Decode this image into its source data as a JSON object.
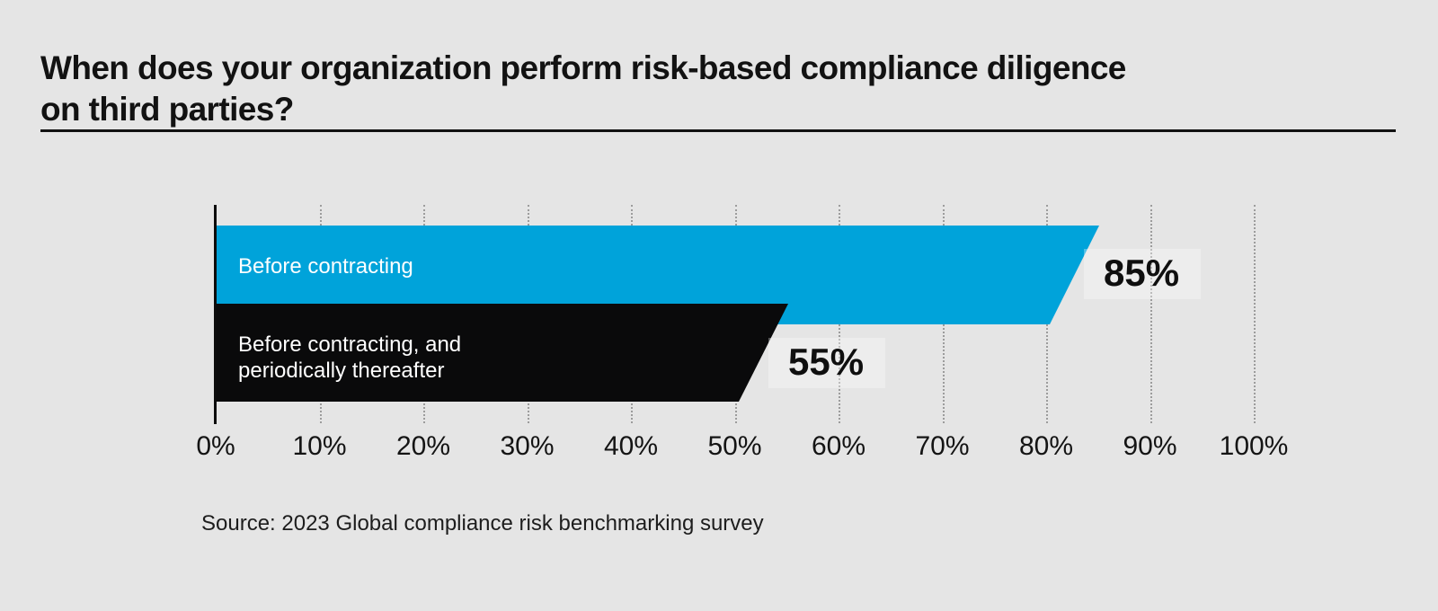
{
  "header": {
    "title_line1": "When does your organization perform risk-based compliance diligence",
    "title_line2": "on third parties?"
  },
  "labels": {
    "bar1_line1": "Before contracting",
    "bar2_line1": "Before contracting, and",
    "bar2_line2": "periodically thereafter"
  },
  "source_text": "Source: 2023 Global compliance risk benchmarking survey",
  "colors": {
    "background": "#e5e5e5",
    "bar_blue": "#00a3da",
    "bar_black": "#0a0a0b",
    "gridline": "#9c9c9c",
    "text": "#121212",
    "bar_label_text": "#ffffff"
  },
  "chart_data": {
    "type": "bar",
    "orientation": "horizontal",
    "title": "When does your organization perform risk-based compliance diligence on third parties?",
    "categories": [
      "Before contracting",
      "Before contracting, and periodically thereafter"
    ],
    "values": [
      85,
      55
    ],
    "value_labels": [
      "85%",
      "55%"
    ],
    "series_colors": [
      "#00a3da",
      "#0a0a0b"
    ],
    "x_ticks": [
      "0%",
      "10%",
      "20%",
      "30%",
      "40%",
      "50%",
      "60%",
      "70%",
      "80%",
      "90%",
      "100%"
    ],
    "xlim": [
      0,
      100
    ],
    "grid": "vertical-dotted",
    "legend": "none",
    "source": "Source: 2023 Global compliance risk benchmarking survey"
  }
}
